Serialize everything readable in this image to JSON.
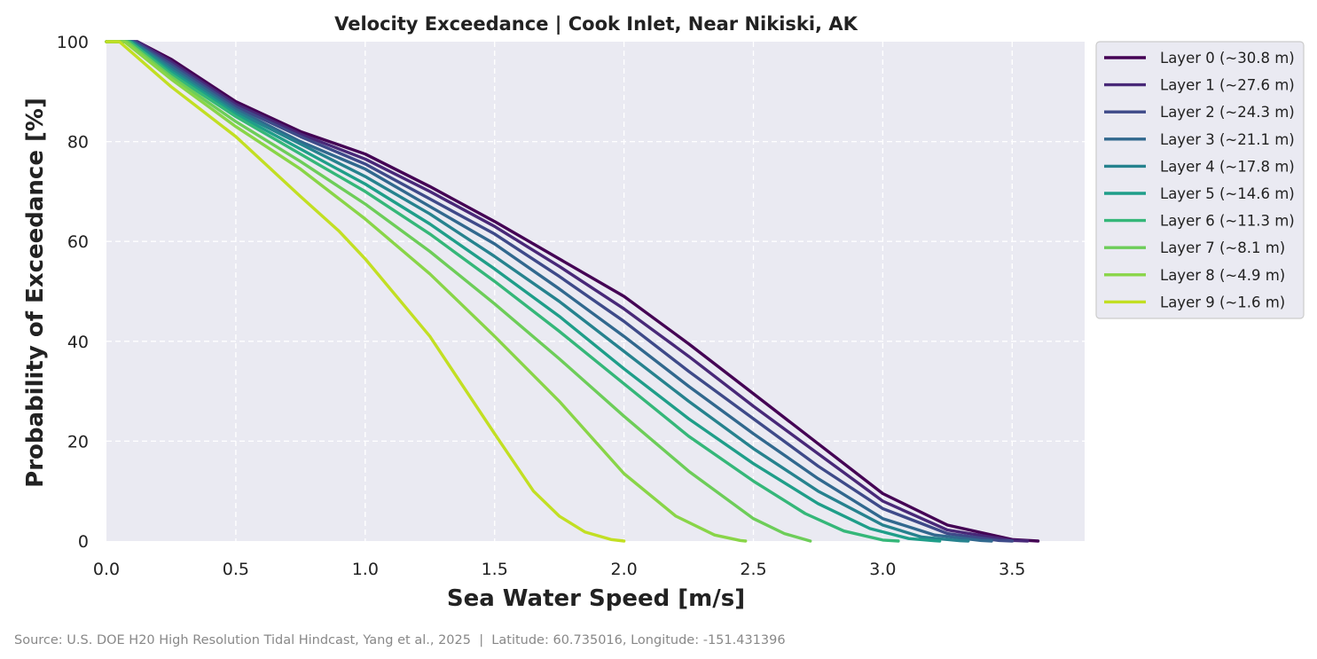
{
  "chart_data": {
    "type": "line",
    "title": "Velocity Exceedance | Cook Inlet, Near Nikiski, AK",
    "xlabel": "Sea Water Speed [m/s]",
    "ylabel": "Probability of Exceedance [%]",
    "xlim": [
      0.0,
      3.78
    ],
    "ylim": [
      0,
      100
    ],
    "xticks": [
      "0.0",
      "0.5",
      "1.0",
      "1.5",
      "2.0",
      "2.5",
      "3.0",
      "3.5"
    ],
    "yticks": [
      "0",
      "20",
      "40",
      "60",
      "80",
      "100"
    ],
    "grid": true,
    "legend_position": "outside top-right",
    "source": "Source: U.S. DOE H20 High Resolution Tidal Hindcast, Yang et al., 2025  |  Latitude: 60.735016, Longitude: -151.431396",
    "series": [
      {
        "name": "Layer 0 (~30.8 m)",
        "color": "#440154",
        "x": [
          0.0,
          0.12,
          0.25,
          0.5,
          0.75,
          1.0,
          1.25,
          1.5,
          1.75,
          2.0,
          2.25,
          2.5,
          2.75,
          3.0,
          3.25,
          3.5,
          3.6
        ],
        "y": [
          100,
          100,
          96.5,
          88,
          82,
          77.5,
          71,
          64,
          56.5,
          49,
          39.5,
          29.5,
          19.5,
          9.5,
          3.2,
          0.3,
          0
        ]
      },
      {
        "name": "Layer 1 (~27.6 m)",
        "color": "#482878",
        "x": [
          0.0,
          0.12,
          0.25,
          0.5,
          0.75,
          1.0,
          1.25,
          1.5,
          1.75,
          2.0,
          2.25,
          2.5,
          2.75,
          3.0,
          3.25,
          3.5,
          3.56
        ],
        "y": [
          100,
          100,
          96,
          87.5,
          81.5,
          76.5,
          70,
          63,
          55,
          46.5,
          37,
          27,
          17.5,
          8,
          2.2,
          0.1,
          0
        ]
      },
      {
        "name": "Layer 2 (~24.3 m)",
        "color": "#3E4A89",
        "x": [
          0.0,
          0.11,
          0.25,
          0.5,
          0.75,
          1.0,
          1.25,
          1.5,
          1.75,
          2.0,
          2.25,
          2.5,
          2.75,
          3.0,
          3.25,
          3.45,
          3.5
        ],
        "y": [
          100,
          100,
          95.5,
          87,
          81,
          75.5,
          68.5,
          61.5,
          53,
          44,
          34,
          24.5,
          15,
          6.5,
          1.5,
          0.1,
          0
        ]
      },
      {
        "name": "Layer 3 (~21.1 m)",
        "color": "#31688E",
        "x": [
          0.0,
          0.1,
          0.25,
          0.5,
          0.75,
          1.0,
          1.25,
          1.5,
          1.75,
          2.0,
          2.25,
          2.5,
          2.75,
          3.0,
          3.2,
          3.38,
          3.42
        ],
        "y": [
          100,
          100,
          95,
          86.5,
          80,
          74.5,
          67,
          59.5,
          50.5,
          41,
          31,
          21.5,
          12.5,
          4.5,
          1.2,
          0.1,
          0
        ]
      },
      {
        "name": "Layer 4 (~17.8 m)",
        "color": "#26828E",
        "x": [
          0.0,
          0.1,
          0.25,
          0.5,
          0.75,
          1.0,
          1.25,
          1.5,
          1.75,
          2.0,
          2.25,
          2.5,
          2.75,
          3.0,
          3.15,
          3.3,
          3.33
        ],
        "y": [
          100,
          100,
          94.5,
          86,
          79.5,
          73,
          65.5,
          57,
          48,
          38,
          28,
          18.5,
          10,
          3.2,
          0.8,
          0.05,
          0
        ]
      },
      {
        "name": "Layer 5 (~14.6 m)",
        "color": "#1F9E89",
        "x": [
          0.0,
          0.09,
          0.25,
          0.5,
          0.75,
          1.0,
          1.25,
          1.5,
          1.75,
          2.0,
          2.25,
          2.5,
          2.75,
          2.95,
          3.1,
          3.2,
          3.22
        ],
        "y": [
          100,
          100,
          94,
          85.5,
          78.5,
          71.5,
          63.5,
          54.5,
          45,
          34.5,
          24.5,
          15.5,
          7.5,
          2.5,
          0.5,
          0.05,
          0
        ]
      },
      {
        "name": "Layer 6 (~11.3 m)",
        "color": "#35B779",
        "x": [
          0.0,
          0.09,
          0.25,
          0.5,
          0.75,
          1.0,
          1.25,
          1.5,
          1.75,
          2.0,
          2.25,
          2.5,
          2.7,
          2.85,
          3.0,
          3.06
        ],
        "y": [
          100,
          100,
          93.5,
          85,
          77.5,
          70,
          61.5,
          52,
          42,
          31.5,
          21,
          12,
          5.5,
          2,
          0.2,
          0
        ]
      },
      {
        "name": "Layer 7 (~8.1 m)",
        "color": "#6DCD59",
        "x": [
          0.0,
          0.08,
          0.25,
          0.5,
          0.75,
          1.0,
          1.25,
          1.5,
          1.75,
          2.0,
          2.25,
          2.5,
          2.62,
          2.72
        ],
        "y": [
          100,
          100,
          93,
          84,
          76,
          67.5,
          58,
          47.5,
          36.5,
          25,
          14,
          4.5,
          1.5,
          0
        ]
      },
      {
        "name": "Layer 8 (~4.9 m)",
        "color": "#89D548",
        "x": [
          0.0,
          0.07,
          0.25,
          0.5,
          0.75,
          1.0,
          1.25,
          1.5,
          1.75,
          2.0,
          2.2,
          2.35,
          2.45,
          2.47
        ],
        "y": [
          100,
          100,
          92.5,
          83,
          74.5,
          64.5,
          53.5,
          41,
          28,
          13.5,
          5,
          1.2,
          0.1,
          0
        ]
      },
      {
        "name": "Layer 9 (~1.6 m)",
        "color": "#C2DF23",
        "x": [
          0.0,
          0.05,
          0.25,
          0.5,
          0.75,
          0.9,
          1.0,
          1.25,
          1.5,
          1.65,
          1.75,
          1.85,
          1.95,
          2.0
        ],
        "y": [
          100,
          100,
          91,
          81,
          69,
          62,
          56.5,
          41,
          21.5,
          10,
          5,
          1.8,
          0.3,
          0
        ]
      }
    ]
  }
}
